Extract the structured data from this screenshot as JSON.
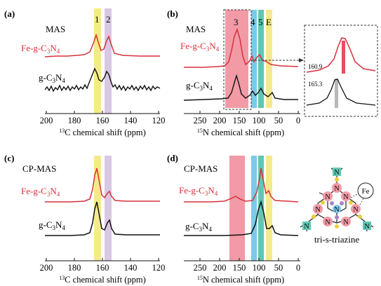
{
  "panels": {
    "a": {
      "label": "(a)",
      "method": "MAS",
      "sample_fe": "Fe-g-C3N4",
      "sample_g": "g-C3N4",
      "band_labels": [
        "1",
        "2"
      ],
      "ticks": [
        "200",
        "180",
        "160",
        "140",
        "120"
      ],
      "axis_label": "13C chemical shift (ppm)"
    },
    "b": {
      "label": "(b)",
      "method": "MAS",
      "sample_fe": "Fe-g-C3N4",
      "sample_g": "g-C3N4",
      "band_labels": [
        "3",
        "4",
        "5",
        "E"
      ],
      "ticks": [
        "250",
        "200",
        "150",
        "100",
        "50",
        "0"
      ],
      "axis_label": "15N chemical shift (ppm)",
      "inset_values": [
        "160.9",
        "165.3"
      ]
    },
    "c": {
      "label": "(c)",
      "method": "CP-MAS",
      "sample_fe": "Fe-g-C3N4",
      "sample_g": "g-C3N4",
      "ticks": [
        "200",
        "180",
        "160",
        "140",
        "120"
      ],
      "axis_label": "13C chemical shift (ppm)"
    },
    "d": {
      "label": "(d)",
      "method": "CP-MAS",
      "sample_fe": "Fe-g-C3N4",
      "sample_g": "g-C3N4",
      "ticks": [
        "250",
        "200",
        "150",
        "100",
        "50",
        "0"
      ],
      "axis_label": "15N chemical shift (ppm)"
    }
  },
  "structure": {
    "caption": "tri-s-triazine",
    "metal": "Fe",
    "atom": "N"
  },
  "colors": {
    "fe_trace": "#d6313b",
    "g_trace": "#111111",
    "band_yellow": "#f5ea8a",
    "band_purple": "#d9c7e3",
    "band_pink": "#f29aa6",
    "band_blue": "#7ec8e8",
    "band_teal": "#5fc7b3"
  }
}
